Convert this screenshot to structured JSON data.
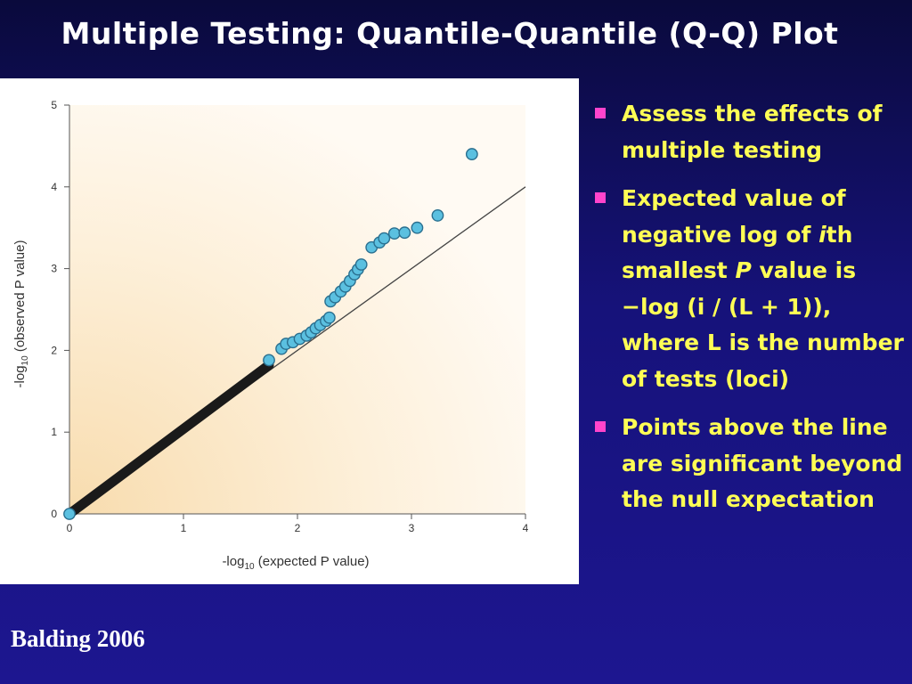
{
  "slide": {
    "title": "Multiple Testing: Quantile-Quantile (Q-Q) Plot",
    "citation": "Balding 2006"
  },
  "bullets": [
    {
      "html": "Assess the effects of multiple testing"
    },
    {
      "html": "Expected value of negative log of <i>i</i>th smallest <i>P</i> value is −log (i / (L + 1)), where L is the number of tests (loci)"
    },
    {
      "html": "Points above the line are significant beyond the null expectation"
    }
  ],
  "colors": {
    "title_text": "#ffffff",
    "bullet_text": "#ffff55",
    "bullet_marker": "#ff44cc",
    "point_fill": "#5bc0e0",
    "point_stroke": "#2a6f8f",
    "dense_points": "#1a1a1a"
  },
  "chart_data": {
    "type": "scatter",
    "xlim": [
      0,
      4
    ],
    "ylim": [
      0,
      5
    ],
    "xticks": [
      "0",
      "1",
      "2",
      "3",
      "4"
    ],
    "yticks": [
      "0",
      "1",
      "2",
      "3",
      "4",
      "5"
    ],
    "xlabel_main": "-log",
    "xlabel_sub": "10",
    "xlabel_rest": " (expected P value)",
    "ylabel_main": "-log",
    "ylabel_sub": "10",
    "ylabel_rest": " (observed P value)",
    "reference_line": {
      "from": [
        0,
        0
      ],
      "to": [
        4,
        4
      ]
    },
    "dense_band": {
      "from": [
        0,
        0
      ],
      "to": [
        1.75,
        1.82
      ]
    },
    "points": [
      [
        0.0,
        0.0
      ],
      [
        1.75,
        1.88
      ],
      [
        1.86,
        2.02
      ],
      [
        1.9,
        2.08
      ],
      [
        1.96,
        2.1
      ],
      [
        2.02,
        2.14
      ],
      [
        2.08,
        2.18
      ],
      [
        2.12,
        2.22
      ],
      [
        2.16,
        2.27
      ],
      [
        2.2,
        2.31
      ],
      [
        2.25,
        2.36
      ],
      [
        2.28,
        2.4
      ],
      [
        2.29,
        2.6
      ],
      [
        2.33,
        2.65
      ],
      [
        2.38,
        2.72
      ],
      [
        2.42,
        2.78
      ],
      [
        2.46,
        2.85
      ],
      [
        2.5,
        2.93
      ],
      [
        2.53,
        2.99
      ],
      [
        2.56,
        3.05
      ],
      [
        2.65,
        3.26
      ],
      [
        2.72,
        3.32
      ],
      [
        2.76,
        3.37
      ],
      [
        2.85,
        3.43
      ],
      [
        2.94,
        3.44
      ],
      [
        3.05,
        3.5
      ],
      [
        3.23,
        3.65
      ],
      [
        3.53,
        4.4
      ]
    ]
  }
}
